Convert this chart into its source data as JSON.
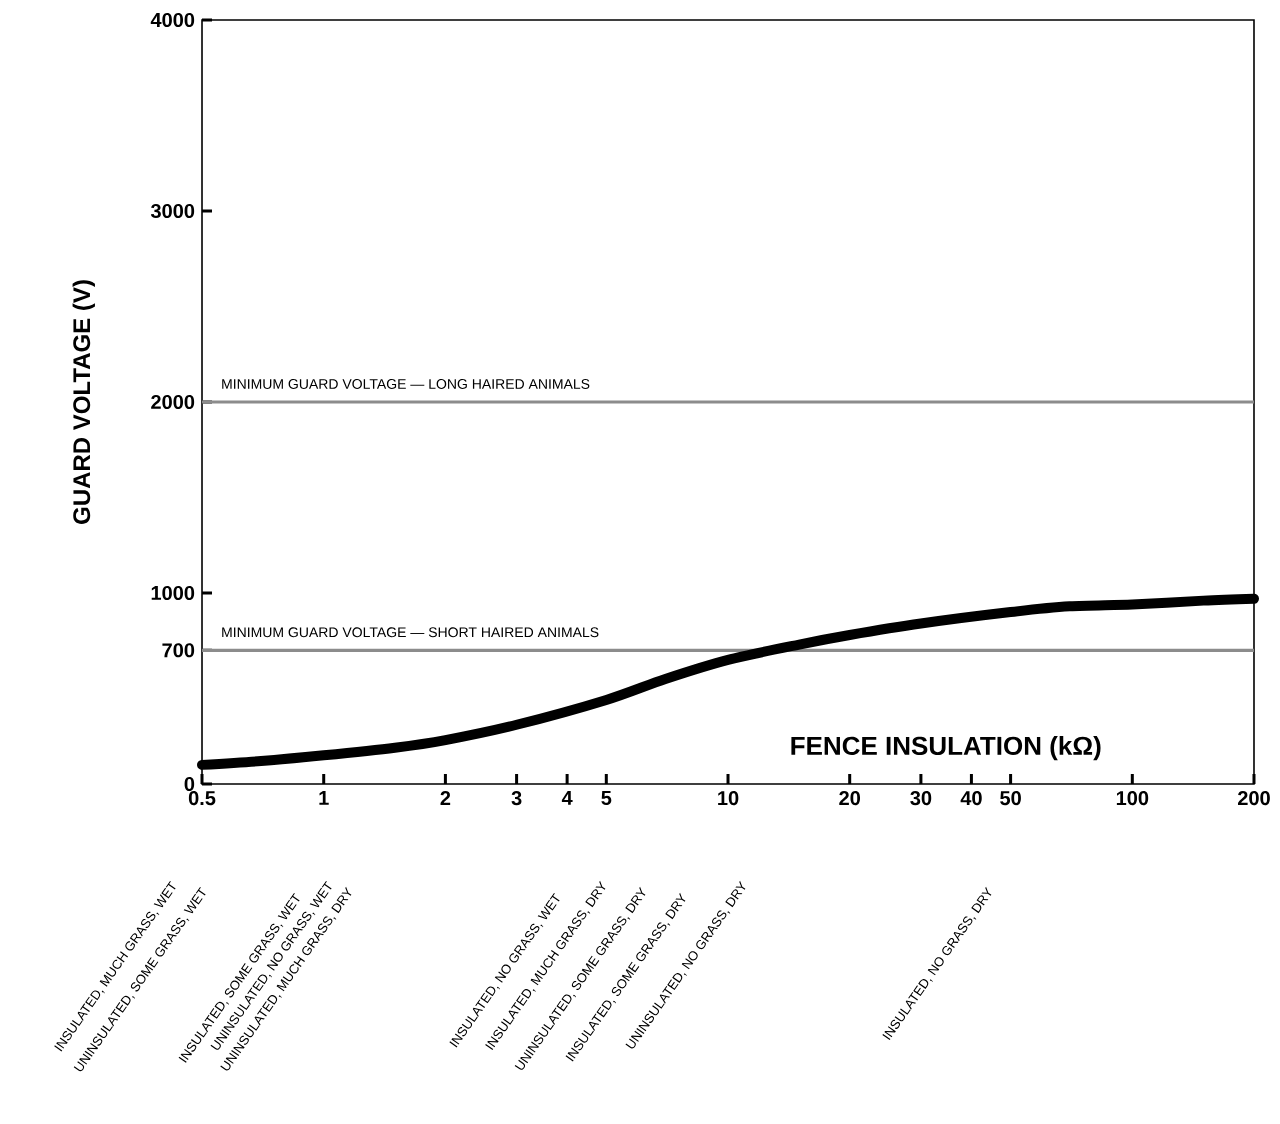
{
  "chart_data": {
    "type": "line",
    "xlabel": "FENCE INSULATION (kΩ)",
    "ylabel": "GUARD VOLTAGE (V)",
    "log": "x",
    "x": [
      0.5,
      0.7,
      1,
      1.5,
      2,
      3,
      5,
      7,
      10,
      15,
      20,
      30,
      50,
      70,
      100,
      150,
      200
    ],
    "series": [
      {
        "color": "#000000",
        "values": [
          100,
          120,
          150,
          190,
          230,
          310,
          440,
          550,
          650,
          730,
          780,
          840,
          900,
          930,
          940,
          960,
          970
        ]
      }
    ],
    "xlim": [
      0.5,
      200
    ],
    "xticks": [
      0.5,
      1,
      2,
      3,
      4,
      5,
      10,
      20,
      30,
      40,
      50,
      100,
      200
    ],
    "ylim": [
      0,
      4000
    ],
    "yticks": [
      0,
      700,
      1000,
      2000,
      3000,
      4000
    ],
    "marker": "none",
    "line_style": "solid",
    "grid": false,
    "ref_lines": [
      {
        "axis": "y",
        "value": 2000,
        "label": "MINIMUM GUARD VOLTAGE — LONG HAIRED ANIMALS",
        "color": "#8c8c8c"
      },
      {
        "axis": "y",
        "value": 700,
        "label": "MINIMUM GUARD VOLTAGE — SHORT HAIRED ANIMALS",
        "color": "#8c8c8c"
      }
    ],
    "annotations": [
      "INSULATED, MUCH GRASS, WET",
      "UNINSULATED, SOME GRASS, WET",
      "INSULATED, SOME GRASS, WET",
      "UNINSULATED, NO GRASS, WET",
      "UNINSULATED, MUCH GRASS, DRY",
      "INSULATED, NO GRASS, WET",
      "INSULATED, MUCH GRASS, DRY",
      "UNINSULATED, SOME GRASS, DRY",
      "INSULATED, SOME GRASS, DRY",
      "UNINSULATED, NO GRASS, DRY",
      "INSULATED, NO GRASS, DRY"
    ]
  }
}
